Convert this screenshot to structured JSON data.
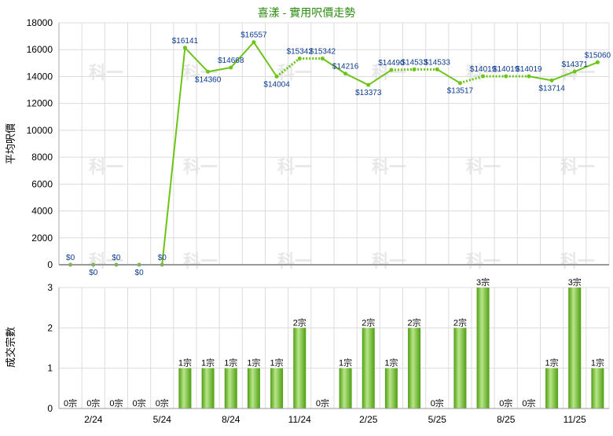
{
  "colors": {
    "line": "#6cc417",
    "bar_light": "#b8e68a",
    "bar_dark": "#4f9e12",
    "grid": "#dcdcdc",
    "title": "#2e8b12",
    "price_text": "#0b3b8f"
  },
  "chart_data": [
    {
      "type": "line",
      "title": "喜漾 - 實用呎價走勢",
      "ylabel": "平均呎價",
      "ylim": [
        0,
        18000
      ],
      "yticks": [
        0,
        2000,
        4000,
        6000,
        8000,
        10000,
        12000,
        14000,
        16000,
        18000
      ],
      "series": [
        {
          "values": [
            0,
            0,
            0,
            0,
            0,
            16141,
            14360,
            14668,
            16557,
            14004,
            15342,
            15342,
            14216,
            13373,
            14490,
            14533,
            14533,
            13517,
            14019,
            14019,
            14019,
            13714,
            14371,
            15060
          ],
          "labels": [
            "$0",
            "$0",
            "$0",
            "$0",
            "$0",
            "$16141",
            "$14360",
            "$14668",
            "$16557",
            "$14004",
            "$15342",
            "$15342",
            "$14216",
            "$13373",
            "$14490",
            "$14533",
            "$14533",
            "$13517",
            "$14019",
            "$14019",
            "$14019",
            "$13714",
            "$14371",
            "$15060"
          ],
          "shown": [
            1,
            1,
            1,
            1,
            1,
            1,
            1,
            1,
            1,
            1,
            1,
            1,
            1,
            1,
            1,
            1,
            1,
            1,
            1,
            1,
            1,
            1,
            1,
            1
          ]
        }
      ],
      "estimated_points": [
        10,
        15,
        18,
        19
      ],
      "grid": true,
      "legend": "none"
    },
    {
      "type": "bar",
      "ylabel": "成交宗數",
      "ylim": [
        0,
        3
      ],
      "yticks": [
        0,
        1,
        2,
        3
      ],
      "categories": [
        "",
        "2/24",
        "",
        "",
        "5/24",
        "",
        "",
        "8/24",
        "",
        "",
        "11/24",
        "",
        "",
        "2/25",
        "",
        "",
        "5/25",
        "",
        "",
        "8/25",
        "",
        "",
        "11/25",
        ""
      ],
      "values": [
        0,
        0,
        0,
        0,
        0,
        1,
        1,
        1,
        1,
        1,
        2,
        0,
        1,
        2,
        1,
        2,
        0,
        2,
        3,
        0,
        0,
        1,
        3,
        1
      ],
      "labels": [
        "0宗",
        "0宗",
        "0宗",
        "0宗",
        "0宗",
        "1宗",
        "1宗",
        "1宗",
        "1宗",
        "1宗",
        "2宗",
        "0宗",
        "1宗",
        "2宗",
        "1宗",
        "2宗",
        "0宗",
        "2宗",
        "3宗",
        "0宗",
        "0宗",
        "1宗",
        "3宗",
        "1宗"
      ],
      "grid": true,
      "legend": "none"
    }
  ],
  "watermark": "科一"
}
